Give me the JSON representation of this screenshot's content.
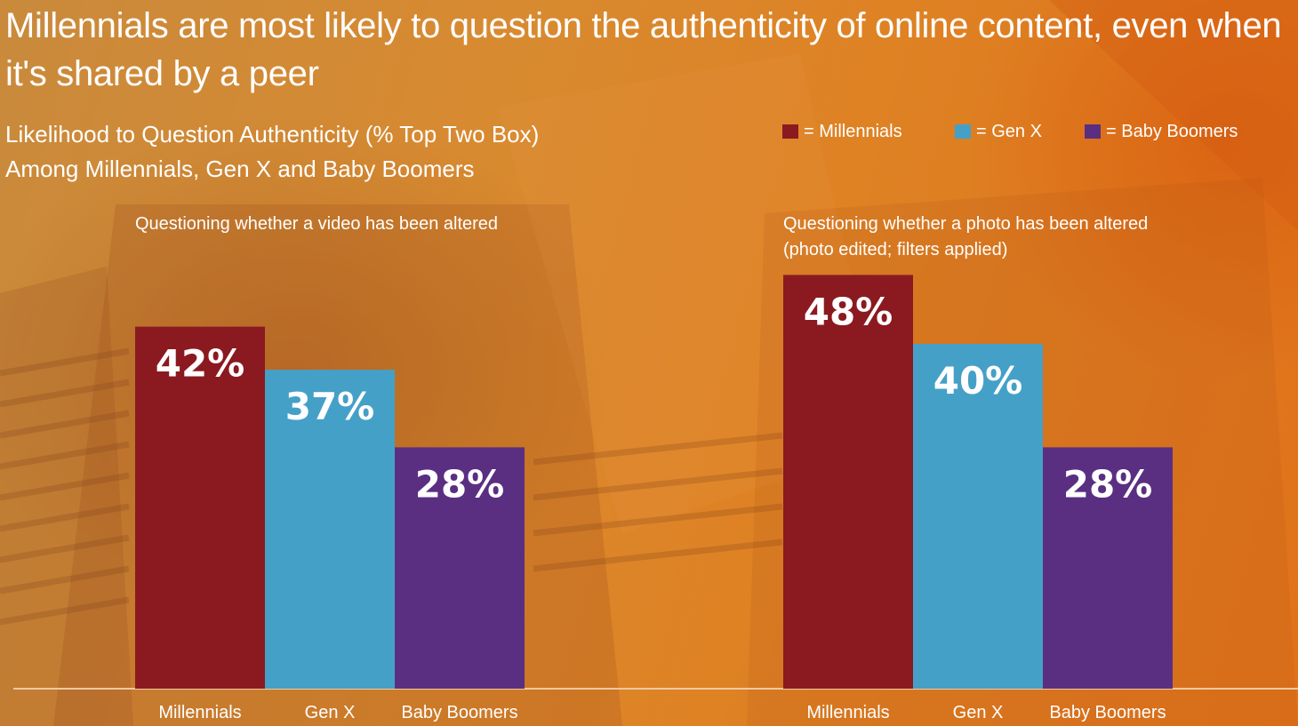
{
  "title": "Millennials are most likely to question the authenticity of online content, even when it's shared by a peer",
  "subtitle_line1": "Likelihood to Question Authenticity (% Top Two Box)",
  "subtitle_line2": "Among Millennials, Gen X and Baby Boomers",
  "legend": [
    {
      "label": "= Millennials",
      "color": "#8b1a20"
    },
    {
      "label": "= Gen X",
      "color": "#45a0c8"
    },
    {
      "label": "= Baby Boomers",
      "color": "#5a2f82"
    }
  ],
  "chart_data": [
    {
      "type": "bar",
      "title": "Questioning whether a video has been altered",
      "categories": [
        "Millennials",
        "Gen X",
        "Baby Boomers"
      ],
      "values": [
        42,
        37,
        28
      ],
      "value_labels": [
        "42%",
        "37%",
        "28%"
      ],
      "colors": [
        "#8b1a20",
        "#45a0c8",
        "#5a2f82"
      ],
      "ylim": [
        0,
        100
      ],
      "grid": false
    },
    {
      "type": "bar",
      "title": "Questioning whether a photo has been altered",
      "subtitle": "(photo edited; filters applied)",
      "categories": [
        "Millennials",
        "Gen X",
        "Baby Boomers"
      ],
      "values": [
        48,
        40,
        28
      ],
      "value_labels": [
        "48%",
        "40%",
        "28%"
      ],
      "colors": [
        "#8b1a20",
        "#45a0c8",
        "#5a2f82"
      ],
      "ylim": [
        0,
        100
      ],
      "grid": false
    }
  ]
}
